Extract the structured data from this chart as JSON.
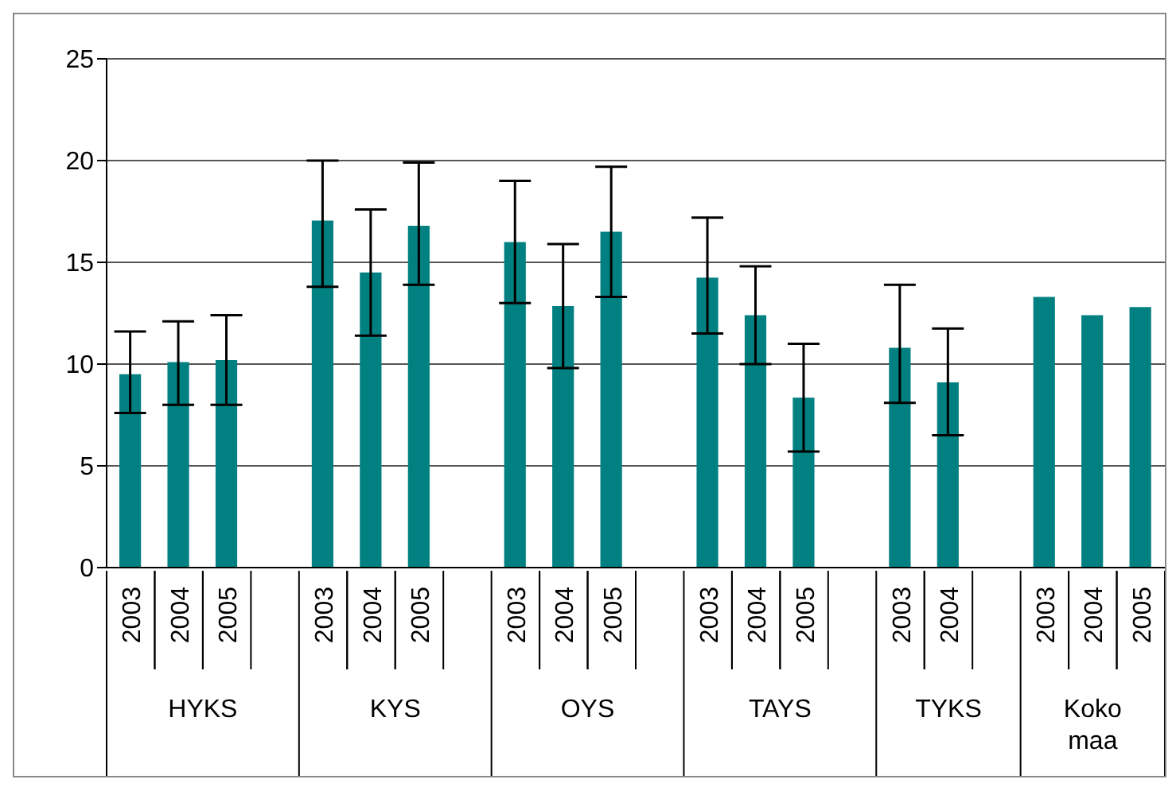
{
  "chart_data": {
    "type": "bar",
    "categories": [
      "2003",
      "2004",
      "2005",
      null,
      "2003",
      "2004",
      "2005",
      null,
      "2003",
      "2004",
      "2005",
      null,
      "2003",
      "2004",
      "2005",
      null,
      "2003",
      "2004",
      null,
      "2003",
      "2004",
      "2005"
    ],
    "values": [
      9.5,
      10.1,
      10.2,
      null,
      17.05,
      14.5,
      16.8,
      null,
      16.0,
      12.85,
      16.5,
      null,
      14.25,
      12.4,
      8.35,
      null,
      10.8,
      9.1,
      null,
      13.3,
      12.4,
      12.8
    ],
    "errors": [
      [
        7.6,
        11.6
      ],
      [
        8.0,
        12.1
      ],
      [
        8.0,
        12.4
      ],
      null,
      [
        13.8,
        20.0
      ],
      [
        11.4,
        17.6
      ],
      [
        13.9,
        19.9
      ],
      null,
      [
        13.0,
        19.0
      ],
      [
        9.8,
        15.9
      ],
      [
        13.3,
        19.7
      ],
      null,
      [
        11.5,
        17.2
      ],
      [
        10.0,
        14.8
      ],
      [
        5.7,
        11.0
      ],
      null,
      [
        8.1,
        13.9
      ],
      [
        6.5,
        11.75
      ],
      null,
      null,
      null,
      null
    ],
    "color": "#008080",
    "ylim": [
      0,
      25
    ],
    "yticks": [
      0,
      5,
      10,
      15,
      20,
      25
    ],
    "grid": "y",
    "annotations": [
      "HYKS",
      "KYS",
      "OYS",
      "TAYS",
      "TYKS",
      "Koko maa"
    ]
  }
}
